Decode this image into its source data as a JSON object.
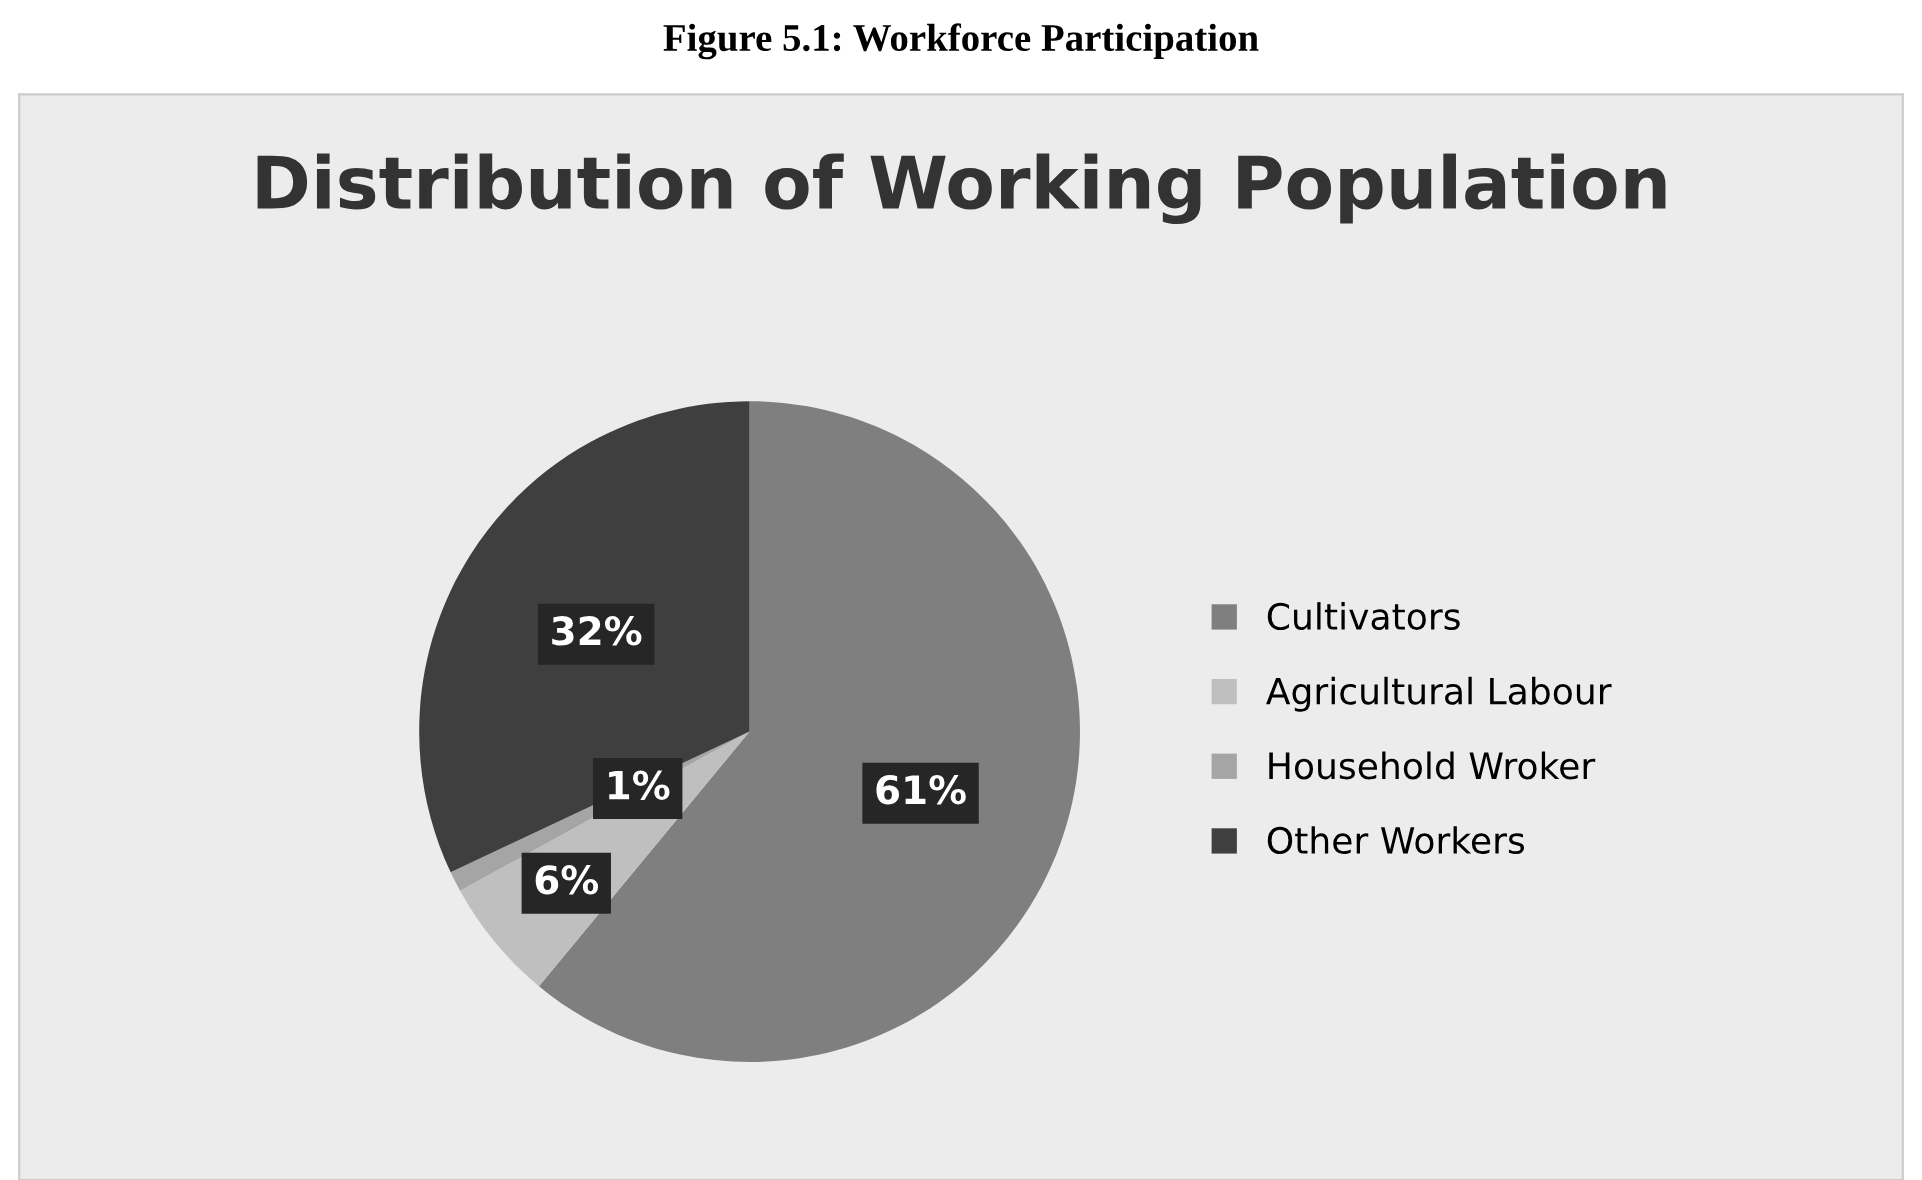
{
  "chart_data": {
    "type": "pie",
    "title": "Distribution of Working Population",
    "annotations": [
      "Figure 5.1: Workforce Participation"
    ],
    "categories": [
      "Cultivators",
      "Agricultural Labour",
      "Household Wroker",
      "Other Workers"
    ],
    "values": [
      61,
      6,
      1,
      32
    ],
    "value_labels": [
      "61%",
      "6%",
      "1%",
      "32%"
    ],
    "colors": [
      "#7f7f7f",
      "#bfbfbf",
      "#a5a5a5",
      "#3f3f3f"
    ],
    "legend": "right"
  }
}
